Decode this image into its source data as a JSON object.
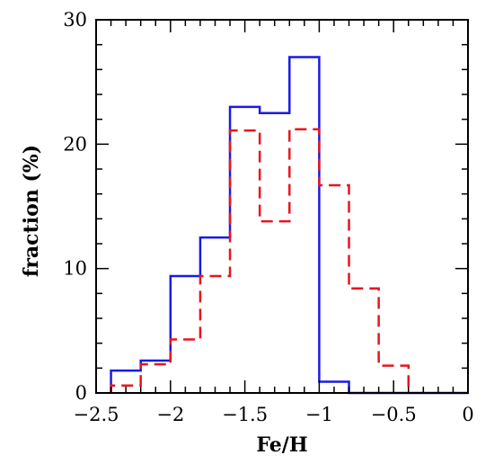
{
  "chart_data": {
    "type": "histogram",
    "xlabel": "Fe/H",
    "ylabel": "fraction (%)",
    "xlim": [
      -2.5,
      0
    ],
    "ylim": [
      0,
      30
    ],
    "grid": false,
    "x_ticks": [
      -2.5,
      -2,
      -1.5,
      -1,
      -0.5,
      0
    ],
    "x_tick_labels": [
      "−2.5",
      "−2",
      "−1.5",
      "−1",
      "−0.5",
      "0"
    ],
    "y_ticks": [
      0,
      10,
      20,
      30
    ],
    "y_tick_labels": [
      "0",
      "10",
      "20",
      "30"
    ],
    "series": [
      {
        "color": "#1a1ae6",
        "style": "solid",
        "bin_edges": [
          -2.4,
          -2.2,
          -2.0,
          -1.8,
          -1.6,
          -1.4,
          -1.2,
          -1.0,
          -0.8,
          -0.6,
          -0.4,
          -0.2,
          0.0
        ],
        "values": [
          1.8,
          2.6,
          9.4,
          12.5,
          23.0,
          22.5,
          27.0,
          0.9,
          0,
          0,
          0,
          0
        ]
      },
      {
        "color": "#e8141e",
        "style": "dashed",
        "bin_edges": [
          -2.4,
          -2.2,
          -2.0,
          -1.8,
          -1.6,
          -1.4,
          -1.2,
          -1.0,
          -0.8,
          -0.6,
          -0.4
        ],
        "values": [
          0.6,
          2.3,
          4.3,
          9.4,
          21.1,
          13.8,
          21.2,
          16.7,
          8.4,
          2.2
        ]
      }
    ]
  }
}
